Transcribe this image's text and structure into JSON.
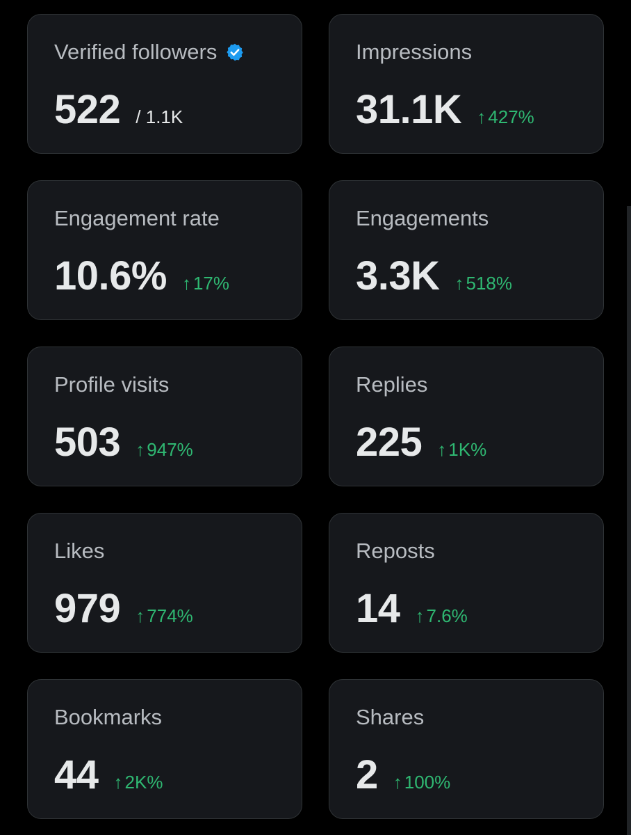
{
  "colors": {
    "background": "#000000",
    "card": "#16181c",
    "card_border": "#2f3336",
    "label": "#b8bcc1",
    "value": "#e7e9ea",
    "positive": "#2fb872",
    "verified_badge": "#1d9bf0"
  },
  "cards": [
    {
      "label": "Verified followers",
      "icon": "verified-badge-icon",
      "value": "522",
      "total": "/ 1.1K"
    },
    {
      "label": "Impressions",
      "value": "31.1K",
      "arrow": "↑",
      "change": "427%"
    },
    {
      "label": "Engagement rate",
      "value": "10.6%",
      "arrow": "↑",
      "change": "17%"
    },
    {
      "label": "Engagements",
      "value": "3.3K",
      "arrow": "↑",
      "change": "518%"
    },
    {
      "label": "Profile visits",
      "value": "503",
      "arrow": "↑",
      "change": "947%"
    },
    {
      "label": "Replies",
      "value": "225",
      "arrow": "↑",
      "change": "1K%"
    },
    {
      "label": "Likes",
      "value": "979",
      "arrow": "↑",
      "change": "774%"
    },
    {
      "label": "Reposts",
      "value": "14",
      "arrow": "↑",
      "change": "7.6%"
    },
    {
      "label": "Bookmarks",
      "value": "44",
      "arrow": "↑",
      "change": "2K%"
    },
    {
      "label": "Shares",
      "value": "2",
      "arrow": "↑",
      "change": "100%"
    }
  ]
}
